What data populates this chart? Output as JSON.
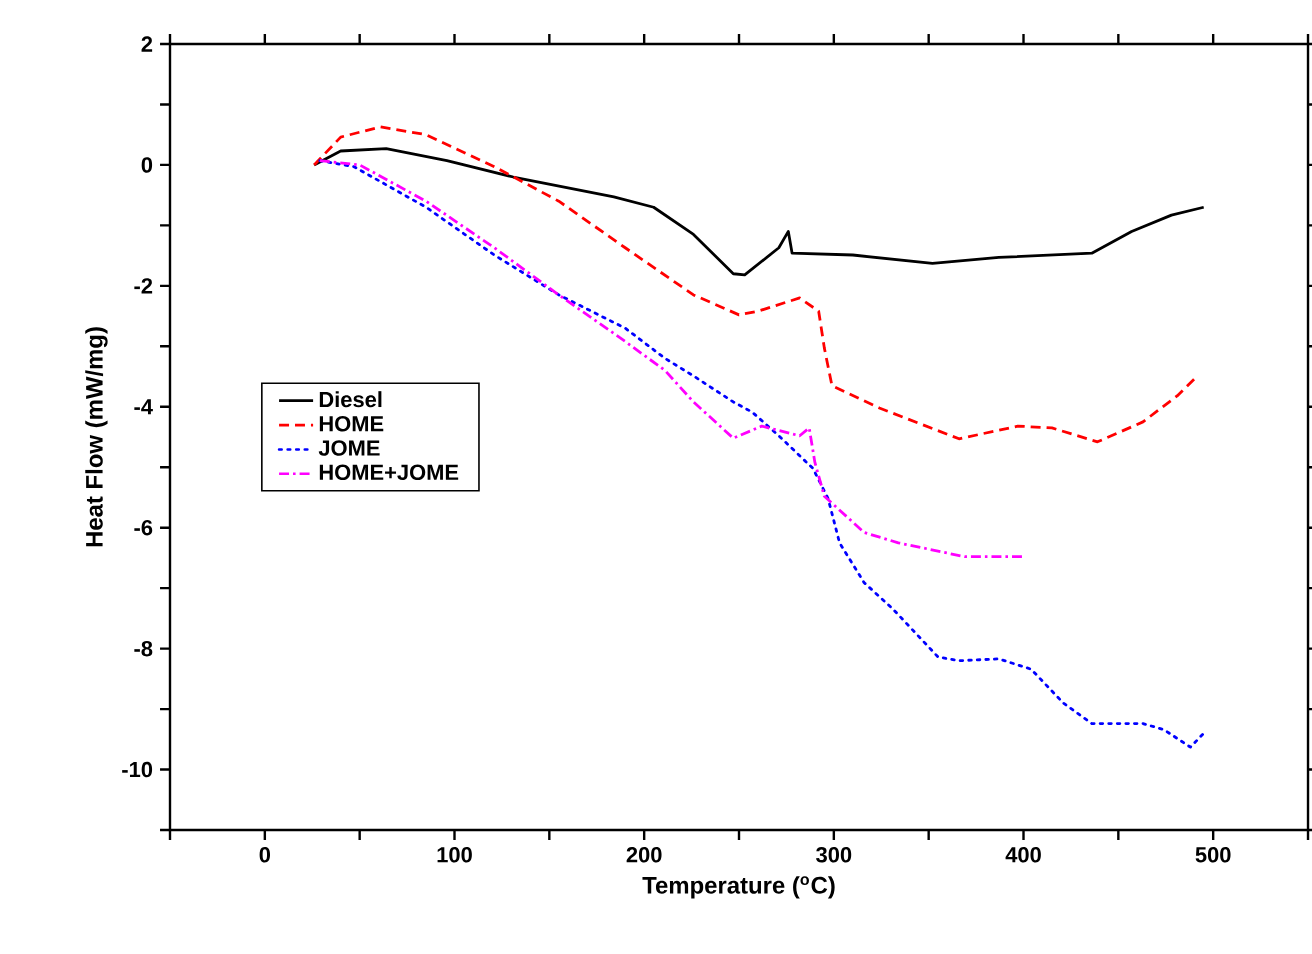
{
  "chart_data": {
    "type": "line",
    "xlabel": "Temperature ($^{o}$C)",
    "ylabel": "Heat Flow (mW/mg)",
    "xlim": [
      -50,
      550
    ],
    "ylim": [
      -11,
      2
    ],
    "xticks": [
      {
        "value": -50,
        "label": null
      },
      0,
      {
        "value": 50,
        "label": null
      },
      100,
      {
        "value": 150,
        "label": null
      },
      200,
      {
        "value": 250,
        "label": null
      },
      300,
      {
        "value": 350,
        "label": null
      },
      400,
      {
        "value": 450,
        "label": null
      },
      500,
      {
        "value": 550,
        "label": null
      }
    ],
    "yticks": [
      {
        "value": -11,
        "label": null
      },
      -10,
      {
        "value": -9,
        "label": null
      },
      -8,
      {
        "value": -7,
        "label": null
      },
      -6,
      {
        "value": -5,
        "label": null
      },
      -4,
      {
        "value": -3,
        "label": null
      },
      -2,
      {
        "value": -1,
        "label": null
      },
      0,
      {
        "value": 1,
        "label": null
      },
      2
    ],
    "grid": false,
    "legend": "left",
    "marker": "none",
    "series": [
      {
        "name": "Diesel",
        "color": "#000000",
        "line_style": "solid",
        "x": [
          26,
          40,
          64,
          96,
          131,
          184,
          205,
          226,
          247,
          253,
          271,
          276,
          278,
          310,
          352,
          387,
          436,
          457,
          478,
          495
        ],
        "values": [
          0.0,
          0.23,
          0.27,
          0.07,
          -0.2,
          -0.53,
          -0.7,
          -1.15,
          -1.8,
          -1.82,
          -1.37,
          -1.1,
          -1.46,
          -1.49,
          -1.63,
          -1.53,
          -1.46,
          -1.1,
          -0.83,
          -0.7
        ]
      },
      {
        "name": "HOME",
        "color": "#ff0000",
        "line_style": "dashed",
        "x": [
          26,
          40,
          61,
          85,
          121,
          155,
          190,
          226,
          250,
          260,
          282,
          292,
          295,
          299,
          324,
          366,
          397,
          415,
          439,
          463,
          481,
          492
        ],
        "values": [
          0.0,
          0.46,
          0.63,
          0.5,
          -0.03,
          -0.6,
          -1.37,
          -2.15,
          -2.48,
          -2.42,
          -2.2,
          -2.42,
          -3.03,
          -3.65,
          -4.02,
          -4.53,
          -4.32,
          -4.35,
          -4.58,
          -4.25,
          -3.82,
          -3.48
        ]
      },
      {
        "name": "JOME",
        "color": "#0000ff",
        "line_style": "dotted",
        "x": [
          29,
          47,
          85,
          121,
          155,
          190,
          211,
          226,
          247,
          257,
          271,
          289,
          297,
          303,
          316,
          331,
          355,
          366,
          387,
          404,
          421,
          436,
          463,
          474,
          488,
          495
        ],
        "values": [
          0.07,
          -0.03,
          -0.7,
          -1.49,
          -2.15,
          -2.7,
          -3.2,
          -3.49,
          -3.92,
          -4.09,
          -4.48,
          -5.02,
          -5.52,
          -6.25,
          -6.91,
          -7.34,
          -8.14,
          -8.2,
          -8.17,
          -8.34,
          -8.9,
          -9.24,
          -9.24,
          -9.34,
          -9.63,
          -9.4
        ]
      },
      {
        "name": "HOME+JOME",
        "color": "#ff00ff",
        "line_style": "dashdotted",
        "x": [
          29,
          50,
          85,
          121,
          155,
          190,
          211,
          226,
          247,
          262,
          282,
          287,
          290,
          295,
          316,
          334,
          369,
          400
        ],
        "values": [
          0.07,
          0.0,
          -0.6,
          -1.37,
          -2.15,
          -2.92,
          -3.4,
          -3.92,
          -4.52,
          -4.32,
          -4.48,
          -4.35,
          -4.92,
          -5.48,
          -6.08,
          -6.25,
          -6.48,
          -6.48
        ]
      }
    ]
  }
}
